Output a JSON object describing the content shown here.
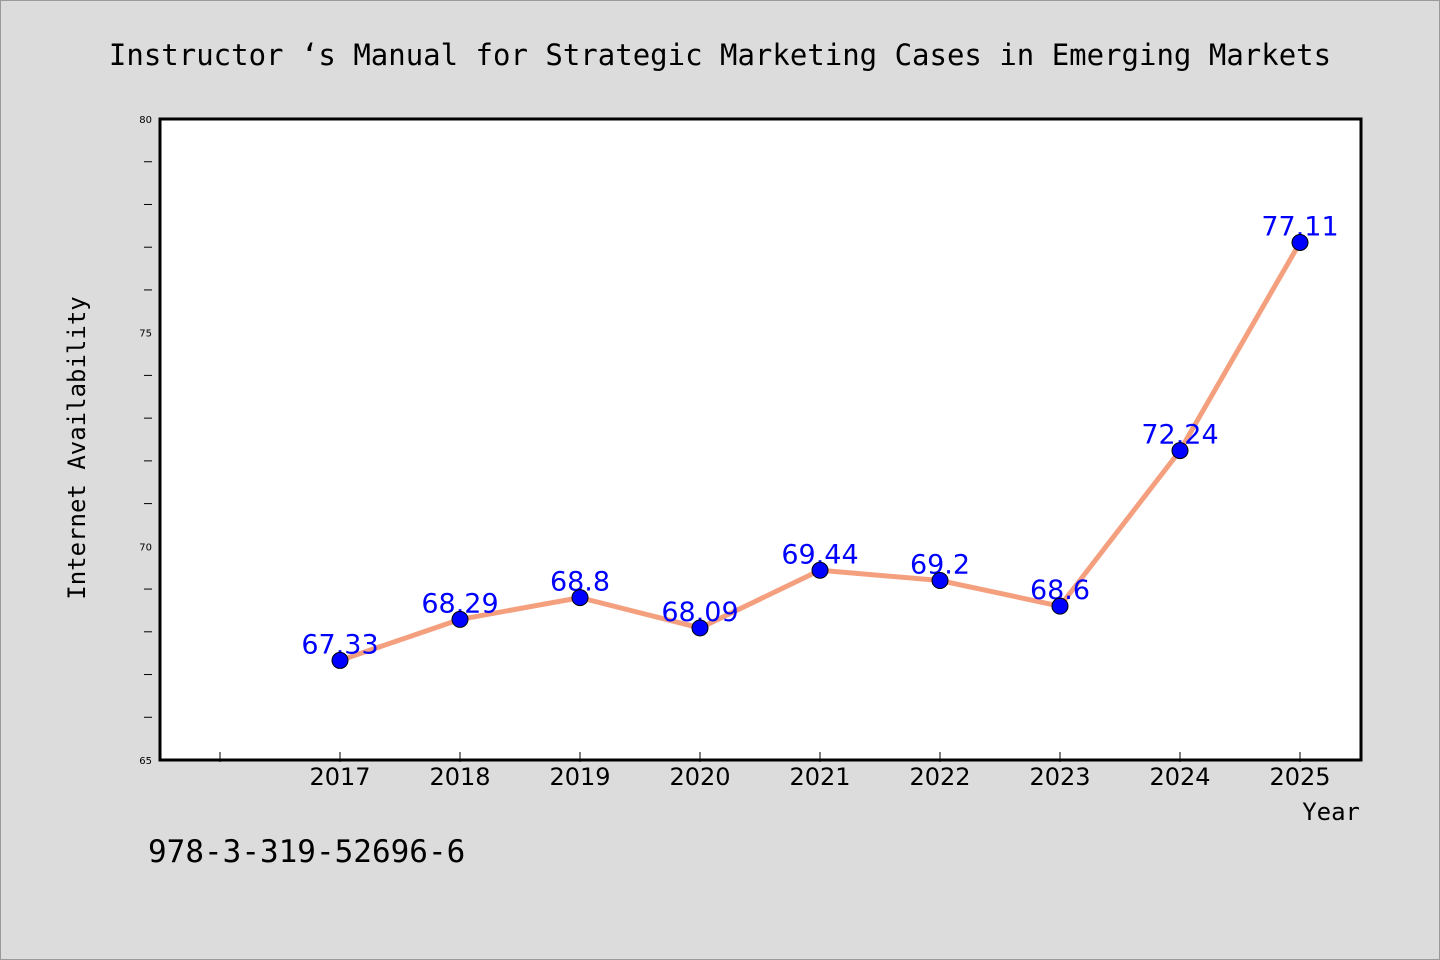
{
  "chart_data": {
    "type": "line",
    "title": "Instructor ‘s Manual for Strategic Marketing Cases in Emerging Markets",
    "xlabel": "Year",
    "ylabel": "Internet Availability",
    "categories": [
      "2017",
      "2018",
      "2019",
      "2020",
      "2021",
      "2022",
      "2023",
      "2024",
      "2025"
    ],
    "series": [
      {
        "values": [
          67.33,
          68.29,
          68.8,
          68.09,
          69.44,
          69.2,
          68.6,
          72.24,
          77.11
        ],
        "data_labels": [
          "67.33",
          "68.29",
          "68.8",
          "68.09",
          "69.44",
          "69.2",
          "68.6",
          "72.24",
          "77.11"
        ],
        "line_color": "#f4a07f",
        "marker_color": "#0000ff"
      }
    ],
    "ylim": [
      65,
      80
    ],
    "yticks": [
      "65",
      "70",
      "75",
      "80"
    ],
    "grid": false,
    "legend": "none"
  },
  "footer": {
    "isbn": "978-3-319-52696-6"
  }
}
